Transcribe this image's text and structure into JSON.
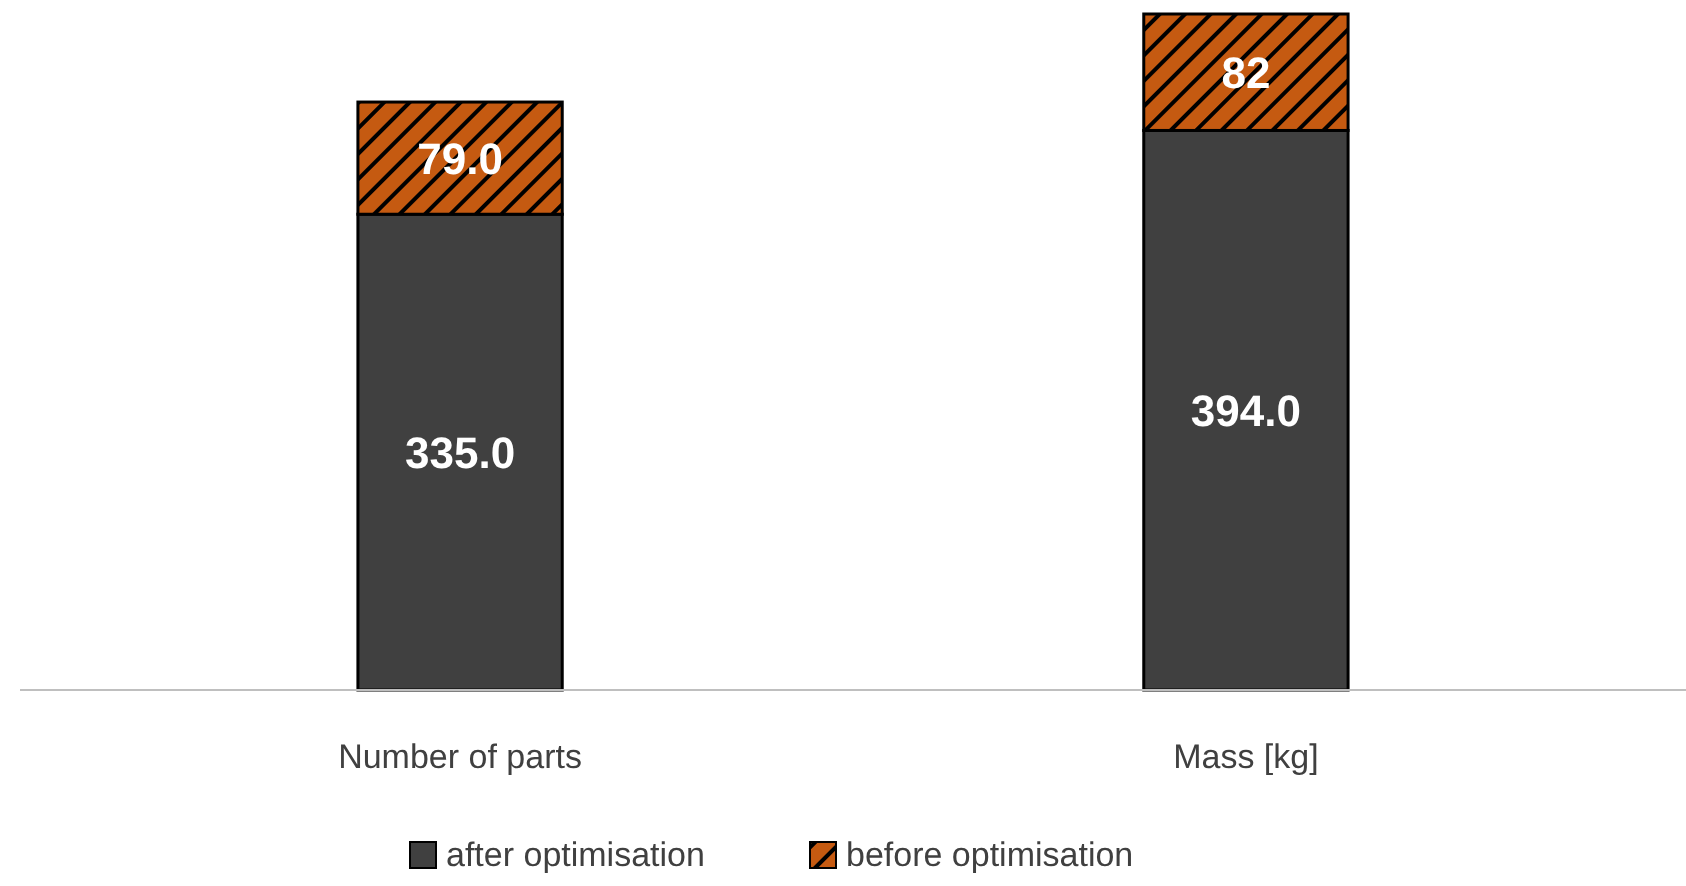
{
  "chart_data": {
    "type": "bar",
    "stacked": true,
    "categories": [
      "Number of parts",
      "Mass [kg]"
    ],
    "series": [
      {
        "name": "after optimisation",
        "color": "#404040",
        "values": [
          335.0,
          394.0
        ],
        "value_labels": [
          "335.0",
          "394.0"
        ]
      },
      {
        "name": "before optimisation",
        "color": "#c55a11",
        "values": [
          79.0,
          82
        ],
        "value_labels": [
          "79.0",
          "82"
        ]
      }
    ],
    "legend": "bottom"
  }
}
